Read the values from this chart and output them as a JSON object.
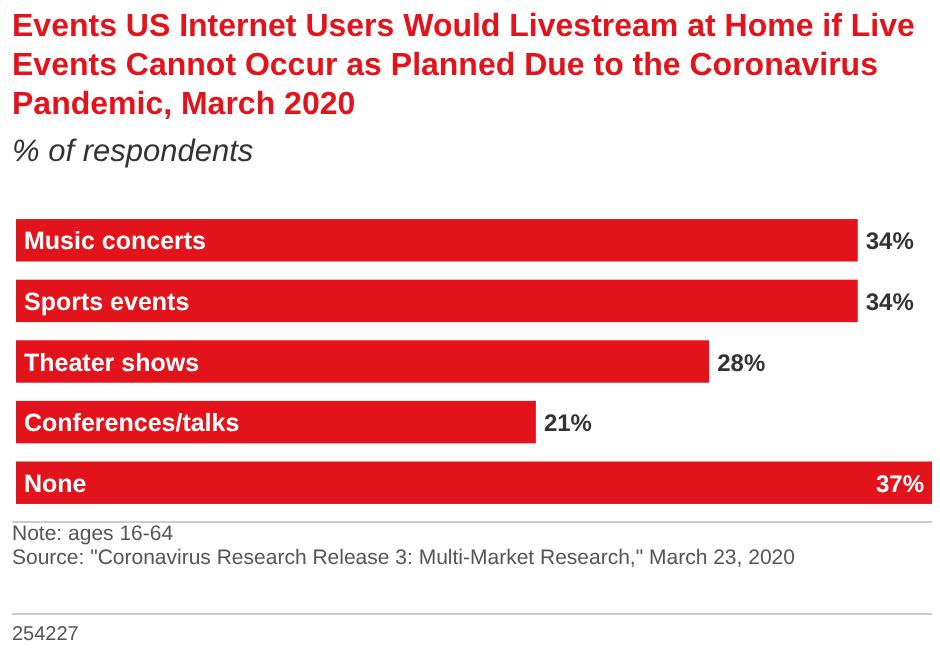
{
  "chart_data": {
    "type": "bar",
    "orientation": "horizontal",
    "title": "Events US Internet Users Would Livestream at Home if Live Events Cannot Occur as Planned Due to the Coronavirus Pandemic, March 2020",
    "subtitle": "% of respondents",
    "categories": [
      "Music concerts",
      "Sports events",
      "Theater shows",
      "Conferences/talks",
      "None"
    ],
    "values": [
      34,
      34,
      28,
      21,
      37
    ],
    "value_labels": [
      "34%",
      "34%",
      "28%",
      "21%",
      "37%"
    ],
    "color": "#e3131b",
    "annotations": [
      "Note: ages 16-64",
      "Source: \"Coronavirus Research Release 3: Multi-Market Research,\" March 23, 2020",
      "254227"
    ]
  }
}
